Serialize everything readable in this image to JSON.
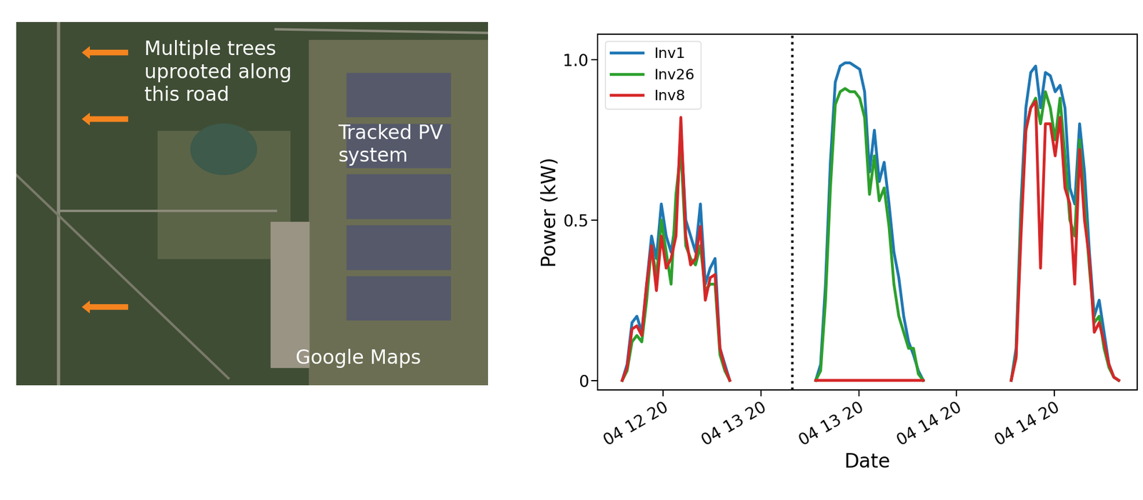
{
  "image_panel": {
    "annotations": [
      "Multiple trees\nuprooted along\nthis road",
      "Tracked PV\nsystem",
      "Google Maps"
    ]
  },
  "chart_data": {
    "type": "line",
    "x_label": "Date",
    "y_label": "Power (kW)",
    "x": [
      -0.42,
      -0.37,
      -0.32,
      -0.27,
      -0.22,
      -0.17,
      -0.12,
      -0.07,
      -0.02,
      0.03,
      0.08,
      0.13,
      0.18,
      0.23,
      0.28,
      0.33,
      0.38,
      0.43,
      0.48,
      0.53,
      0.58,
      0.63,
      0.68,
      null,
      1.56,
      1.61,
      1.66,
      1.71,
      1.76,
      1.81,
      1.86,
      1.91,
      1.96,
      2.01,
      2.06,
      2.11,
      2.16,
      2.21,
      2.26,
      2.31,
      2.36,
      2.41,
      2.46,
      2.51,
      2.56,
      2.61,
      2.66,
      null,
      3.56,
      3.61,
      3.66,
      3.71,
      3.76,
      3.81,
      3.86,
      3.91,
      3.96,
      4.01,
      4.06,
      4.11,
      4.16,
      4.21,
      4.26,
      4.31,
      4.36,
      4.41,
      4.46,
      4.51,
      4.56,
      4.61,
      4.66
    ],
    "series": [
      {
        "name": "Inv1",
        "color": "#1f77b4",
        "line_style": "solid",
        "values": [
          0,
          0.05,
          0.18,
          0.2,
          0.15,
          0.3,
          0.45,
          0.38,
          0.55,
          0.45,
          0.4,
          0.5,
          0.78,
          0.5,
          0.45,
          0.4,
          0.55,
          0.3,
          0.35,
          0.38,
          0.1,
          0.05,
          0,
          null,
          0,
          0.05,
          0.3,
          0.68,
          0.93,
          0.98,
          0.99,
          0.99,
          0.98,
          0.97,
          0.9,
          0.65,
          0.78,
          0.62,
          0.68,
          0.55,
          0.4,
          0.32,
          0.2,
          0.12,
          0.08,
          0.03,
          0,
          null,
          0,
          0.1,
          0.55,
          0.85,
          0.96,
          0.98,
          0.85,
          0.96,
          0.95,
          0.9,
          0.92,
          0.85,
          0.6,
          0.55,
          0.8,
          0.65,
          0.4,
          0.2,
          0.25,
          0.15,
          0.05,
          0.01,
          0
        ]
      },
      {
        "name": "Inv26",
        "color": "#2ca02c",
        "line_style": "solid",
        "values": [
          0,
          0.03,
          0.12,
          0.14,
          0.12,
          0.25,
          0.42,
          0.32,
          0.5,
          0.4,
          0.3,
          0.58,
          0.72,
          0.42,
          0.38,
          0.36,
          0.42,
          0.28,
          0.3,
          0.3,
          0.08,
          0.03,
          0,
          null,
          0,
          0.03,
          0.25,
          0.6,
          0.86,
          0.9,
          0.91,
          0.9,
          0.9,
          0.88,
          0.82,
          0.58,
          0.7,
          0.56,
          0.6,
          0.48,
          0.3,
          0.2,
          0.15,
          0.1,
          0.1,
          0.02,
          0,
          null,
          0,
          0.08,
          0.5,
          0.78,
          0.85,
          0.88,
          0.8,
          0.9,
          0.85,
          0.75,
          0.88,
          0.7,
          0.5,
          0.45,
          0.75,
          0.55,
          0.35,
          0.18,
          0.2,
          0.1,
          0.04,
          0.01,
          0
        ]
      },
      {
        "name": "Inv8",
        "color": "#d62728",
        "line_style": "solid",
        "values": [
          0,
          0.04,
          0.16,
          0.17,
          0.14,
          0.3,
          0.42,
          0.28,
          0.45,
          0.35,
          0.38,
          0.45,
          0.82,
          0.45,
          0.36,
          0.38,
          0.48,
          0.25,
          0.32,
          0.33,
          0.1,
          0.04,
          0,
          null,
          0,
          0,
          0,
          0,
          0,
          0,
          0,
          0,
          0,
          0,
          0,
          0,
          0,
          0,
          0,
          0,
          0,
          0,
          0,
          0,
          0,
          0,
          0,
          null,
          0,
          0.07,
          0.45,
          0.78,
          0.85,
          0.87,
          0.35,
          0.8,
          0.8,
          0.7,
          0.82,
          0.6,
          0.55,
          0.3,
          0.72,
          0.5,
          0.38,
          0.15,
          0.18,
          0.12,
          0.05,
          0.01,
          0
        ]
      }
    ],
    "vlines": [
      1.32
    ],
    "xlim": [
      -0.67,
      4.85
    ],
    "xticks": [
      {
        "value": 0,
        "label": "04 12 20"
      },
      {
        "value": 1,
        "label": "04 13 20"
      },
      {
        "value": 2,
        "label": "04 13 20"
      },
      {
        "value": 3,
        "label": "04 14 20"
      },
      {
        "value": 4,
        "label": "04 14 20"
      }
    ],
    "ylim": [
      -0.03,
      1.08
    ],
    "yticks": [
      0,
      0.5,
      {
        "value": 1.0,
        "label": "1.0"
      }
    ],
    "legend": "upper left",
    "grid": false
  }
}
